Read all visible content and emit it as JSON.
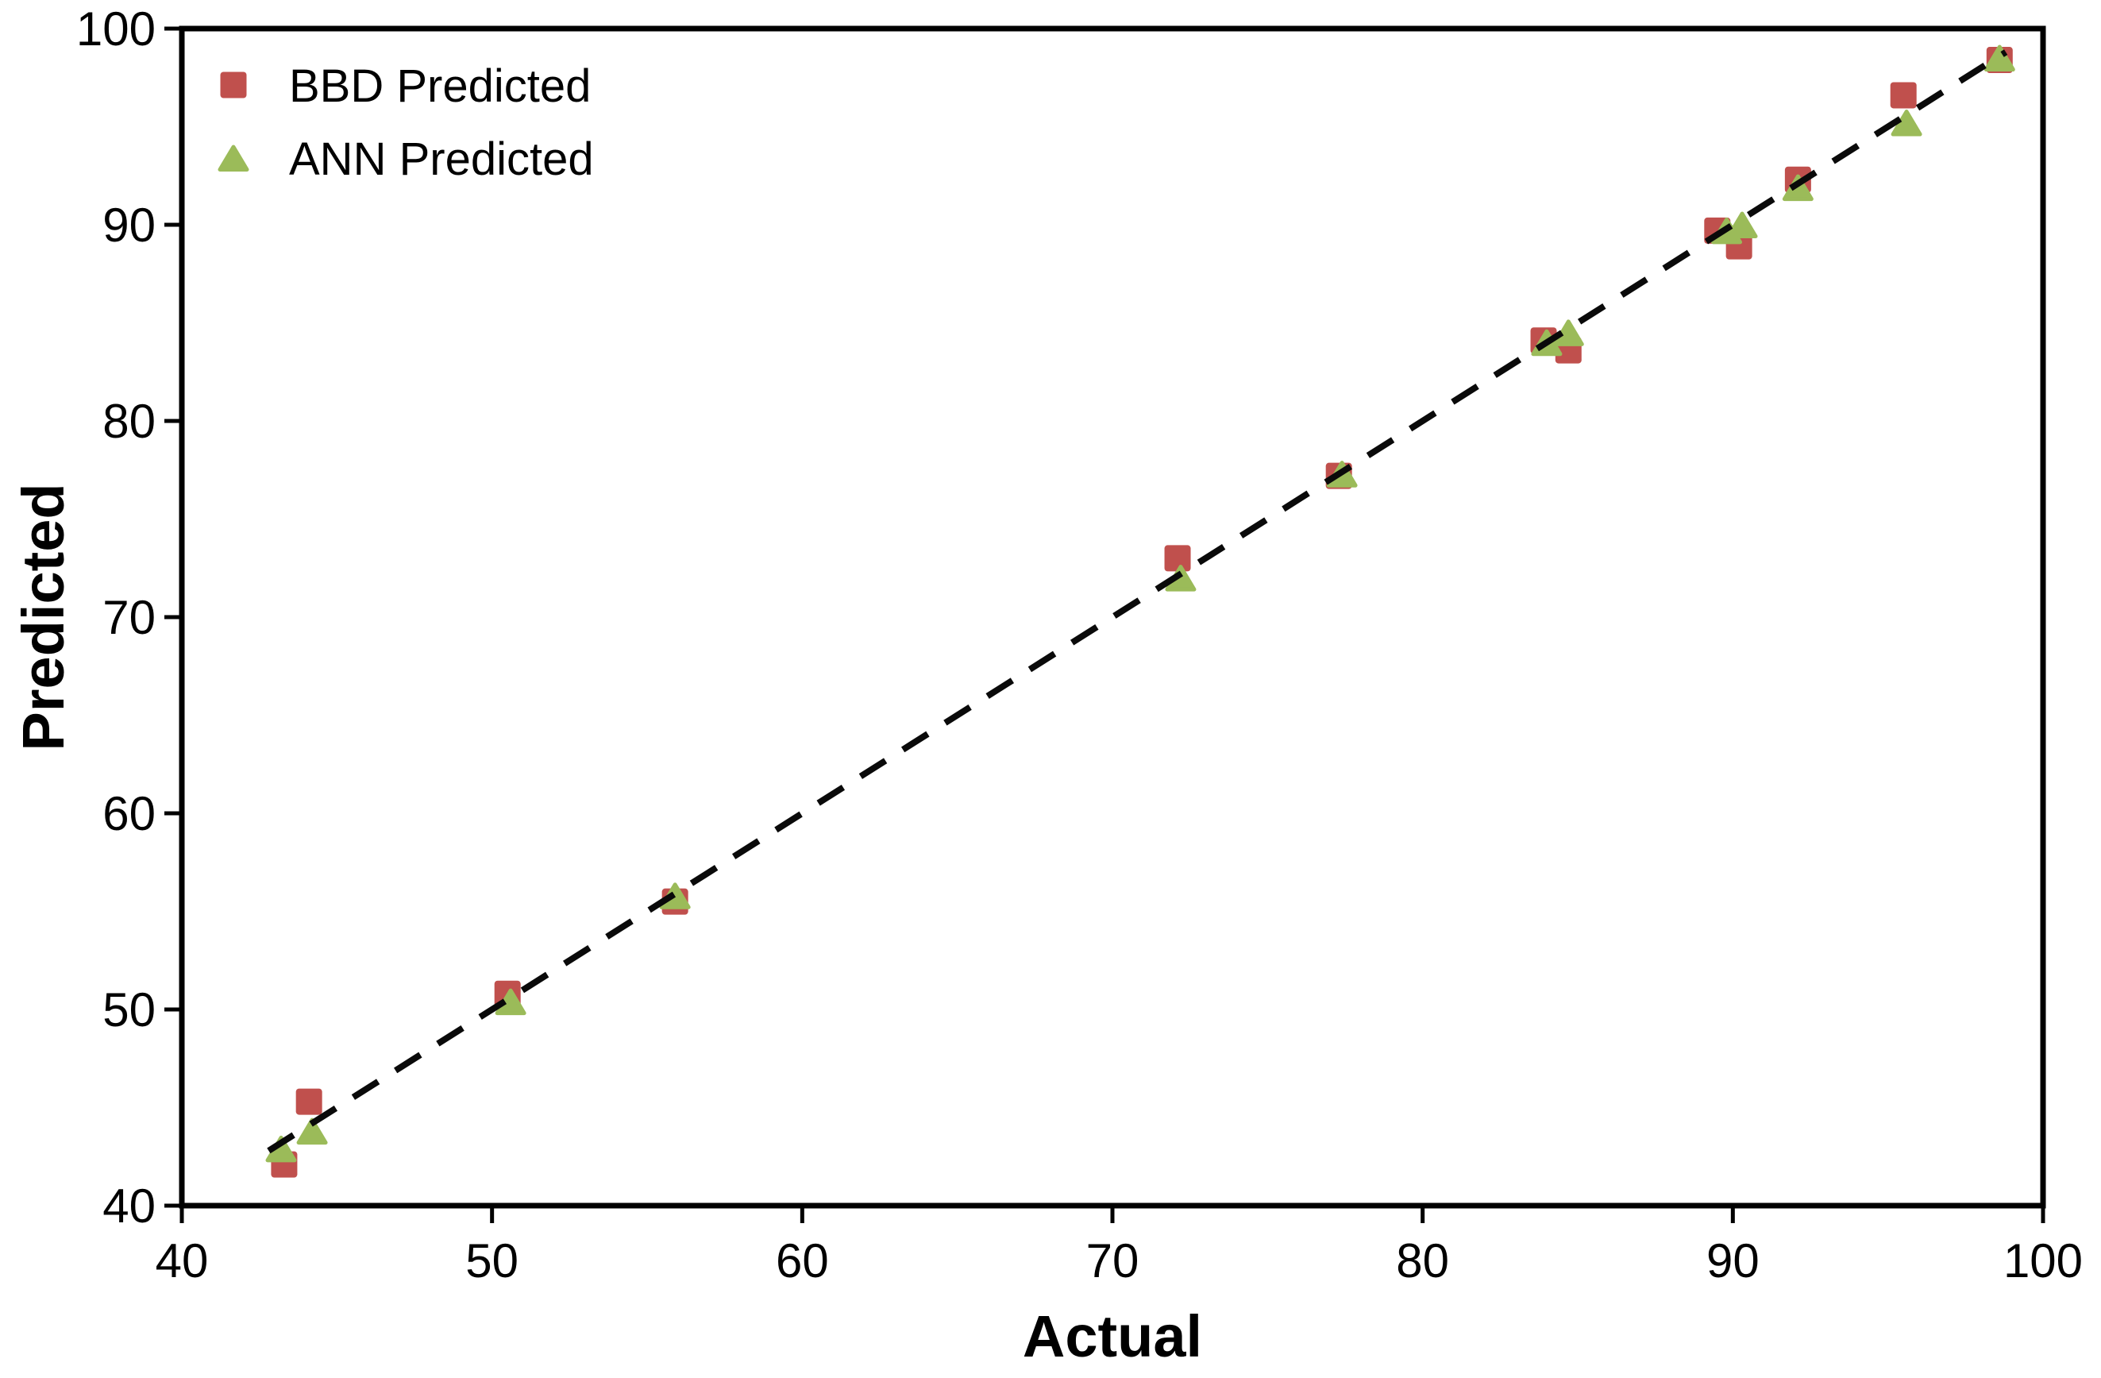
{
  "chart_data": {
    "type": "scatter",
    "title": "",
    "xlabel": "Actual",
    "ylabel": "Predicted",
    "xlim": [
      40,
      100
    ],
    "ylim": [
      40,
      100
    ],
    "xticks": [
      40,
      50,
      60,
      70,
      80,
      90,
      100
    ],
    "yticks": [
      40,
      50,
      60,
      70,
      80,
      90,
      100
    ],
    "grid": false,
    "legend_position": "top-left-inside",
    "axis_color": "#000000",
    "background_color": "#ffffff",
    "series": [
      {
        "name": "BBD Predicted",
        "marker": "square",
        "color": "#C0504D",
        "points": [
          [
            43.3,
            42.1
          ],
          [
            44.1,
            45.3
          ],
          [
            50.5,
            50.8
          ],
          [
            55.9,
            55.5
          ],
          [
            72.1,
            73.0
          ],
          [
            77.3,
            77.2
          ],
          [
            83.9,
            84.1
          ],
          [
            84.7,
            83.6
          ],
          [
            89.5,
            89.7
          ],
          [
            90.2,
            88.9
          ],
          [
            92.1,
            92.3
          ],
          [
            95.5,
            96.6
          ],
          [
            98.6,
            98.4
          ]
        ]
      },
      {
        "name": "ANN Predicted",
        "marker": "triangle",
        "color": "#9BBB59",
        "points": [
          [
            43.2,
            42.9
          ],
          [
            44.2,
            43.8
          ],
          [
            50.6,
            50.4
          ],
          [
            55.9,
            55.8
          ],
          [
            72.2,
            72.0
          ],
          [
            77.4,
            77.3
          ],
          [
            84.0,
            84.0
          ],
          [
            84.7,
            84.5
          ],
          [
            89.8,
            89.7
          ],
          [
            90.3,
            90.0
          ],
          [
            92.1,
            91.9
          ],
          [
            95.6,
            95.2
          ],
          [
            98.6,
            98.5
          ]
        ]
      }
    ],
    "identity_line": {
      "style": "dashed",
      "color": "#0a0a0a",
      "x_start": 42.8,
      "x_end": 98.8
    }
  }
}
